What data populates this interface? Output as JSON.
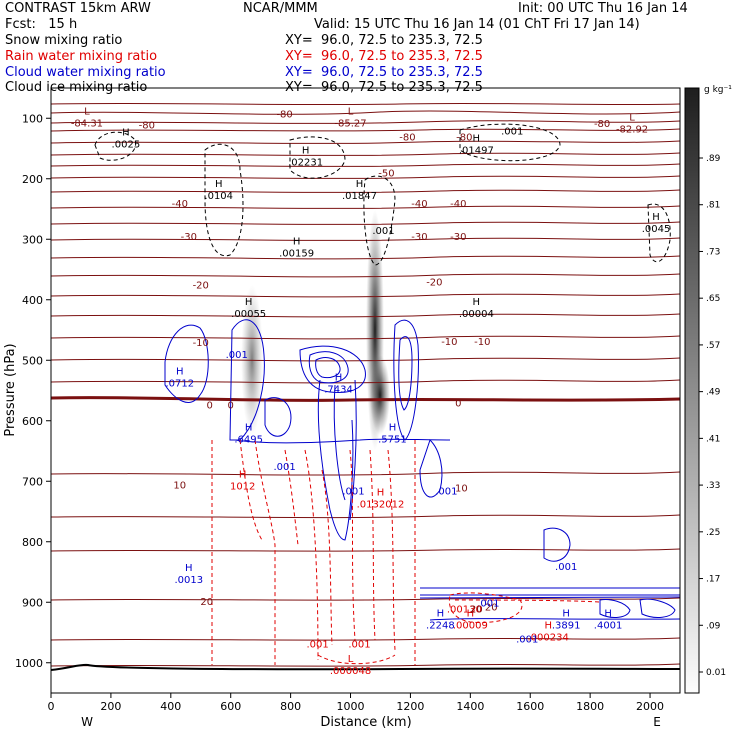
{
  "header": {
    "model": "CONTRAST 15km ARW",
    "org": "NCAR/MMM",
    "init": "Init: 00 UTC Thu 16 Jan 14",
    "fcst": "Fcst:   15 h",
    "valid": "Valid: 15 UTC Thu 16 Jan 14 (01 ChT Fri 17 Jan 14)",
    "fields": [
      {
        "name": "Snow mixing ratio",
        "xy": "XY=  96.0, 72.5 to 235.3, 72.5",
        "color": "#000000"
      },
      {
        "name": "Rain water mixing ratio",
        "xy": "XY=  96.0, 72.5 to 235.3, 72.5",
        "color": "#e00000"
      },
      {
        "name": "Cloud water mixing ratio",
        "xy": "XY=  96.0, 72.5 to 235.3, 72.5",
        "color": "#0000cc"
      },
      {
        "name": "Cloud ice mixing ratio",
        "xy": "XY=  96.0, 72.5 to 235.3, 72.5",
        "color": "#000000"
      }
    ]
  },
  "chart_data": {
    "type": "cross-section",
    "xlabel": "Distance (km)",
    "ylabel": "Pressure (hPa)",
    "xlim": [
      0,
      2100
    ],
    "ylim": [
      1050,
      50
    ],
    "x_ticks": [
      0,
      200,
      400,
      600,
      800,
      1000,
      1200,
      1400,
      1600,
      1800,
      2000
    ],
    "y_ticks": [
      100,
      200,
      300,
      400,
      500,
      600,
      700,
      800,
      900,
      1000
    ],
    "x_end_labels": [
      "W",
      "E"
    ],
    "colorbar": {
      "unit": "g kg⁻¹",
      "ticks": [
        "0.01",
        ".09",
        ".17",
        ".25",
        ".33",
        ".41",
        ".49",
        ".57",
        ".65",
        ".73",
        ".81",
        ".89"
      ],
      "values": [
        0.01,
        0.09,
        0.17,
        0.25,
        0.33,
        0.41,
        0.49,
        0.57,
        0.65,
        0.73,
        0.81,
        0.89
      ]
    },
    "temperature_contours": [
      {
        "label": "-80",
        "x": 320,
        "p": 110
      },
      {
        "label": "-80",
        "x": 780,
        "p": 92
      },
      {
        "label": "-80",
        "x": 1190,
        "p": 130
      },
      {
        "label": "-80",
        "x": 1380,
        "p": 130
      },
      {
        "label": "-80",
        "x": 1840,
        "p": 108
      },
      {
        "label": "-50",
        "x": 1120,
        "p": 190
      },
      {
        "label": "-40",
        "x": 430,
        "p": 240
      },
      {
        "label": "-40",
        "x": 1230,
        "p": 240
      },
      {
        "label": "-40",
        "x": 1360,
        "p": 240
      },
      {
        "label": "-30",
        "x": 460,
        "p": 295
      },
      {
        "label": "-30",
        "x": 1230,
        "p": 295
      },
      {
        "label": "-30",
        "x": 1360,
        "p": 295
      },
      {
        "label": "-20",
        "x": 500,
        "p": 375
      },
      {
        "label": "-20",
        "x": 1280,
        "p": 370
      },
      {
        "label": "-10",
        "x": 500,
        "p": 470
      },
      {
        "label": "-10",
        "x": 1330,
        "p": 468
      },
      {
        "label": "-10",
        "x": 1440,
        "p": 468
      },
      {
        "label": "0",
        "x": 530,
        "p": 573
      },
      {
        "label": "0",
        "x": 600,
        "p": 573
      },
      {
        "label": "0",
        "x": 1360,
        "p": 570
      },
      {
        "label": "10",
        "x": 430,
        "p": 705
      },
      {
        "label": "10",
        "x": 1370,
        "p": 710
      },
      {
        "label": "20",
        "x": 520,
        "p": 898
      },
      {
        "label": "20",
        "x": 1470,
        "p": 907
      }
    ],
    "extrema": [
      {
        "kind": "L",
        "value": "-84.31",
        "x": 120,
        "p": 105,
        "color": "#7b1010"
      },
      {
        "kind": "L",
        "value": "-85.27",
        "x": 1000,
        "p": 105,
        "color": "#7b1010"
      },
      {
        "kind": "L",
        "value": "-82.92",
        "x": 1940,
        "p": 115,
        "color": "#7b1010"
      },
      {
        "kind": "H",
        "value": ".0025",
        "x": 250,
        "p": 140,
        "color": "#000000"
      },
      {
        "kind": "H",
        "value": ".02231",
        "x": 850,
        "p": 170,
        "color": "#000000"
      },
      {
        "kind": "H",
        "value": ".01497",
        "x": 1420,
        "p": 150,
        "color": "#000000"
      },
      {
        "kind": "H",
        "value": ".0104",
        "x": 560,
        "p": 225,
        "color": "#000000"
      },
      {
        "kind": "H",
        "value": ".01847",
        "x": 1030,
        "p": 225,
        "color": "#000000"
      },
      {
        "kind": "H",
        "value": ".0045",
        "x": 2020,
        "p": 280,
        "color": "#000000"
      },
      {
        "kind": "H",
        "value": ".00159",
        "x": 820,
        "p": 320,
        "color": "#000000"
      },
      {
        "kind": "H",
        "value": ".00055",
        "x": 660,
        "p": 420,
        "color": "#000000"
      },
      {
        "kind": "H",
        "value": ".00004",
        "x": 1420,
        "p": 420,
        "color": "#000000"
      },
      {
        "kind": "H",
        "value": ".0712",
        "x": 430,
        "p": 535,
        "color": "#0000cc"
      },
      {
        "kind": "H",
        "value": ".7434",
        "x": 960,
        "p": 545,
        "color": "#0000cc"
      },
      {
        "kind": "H",
        "value": ".6495",
        "x": 660,
        "p": 628,
        "color": "#0000cc"
      },
      {
        "kind": "H",
        "value": ".5751",
        "x": 1140,
        "p": 628,
        "color": "#0000cc"
      },
      {
        "kind": "H",
        "value": ".0013",
        "x": 460,
        "p": 860,
        "color": "#0000cc"
      },
      {
        "kind": "H",
        "value": ".2248",
        "x": 1300,
        "p": 935,
        "color": "#0000cc"
      },
      {
        "kind": "H",
        "value": ".3891",
        "x": 1720,
        "p": 935,
        "color": "#0000cc"
      },
      {
        "kind": "H",
        "value": ".4001",
        "x": 1860,
        "p": 935,
        "color": "#0000cc"
      },
      {
        "kind": "H",
        "value": ".00009",
        "x": 1400,
        "p": 935,
        "color": "#e00000"
      },
      {
        "kind": "H",
        "value": ".000234",
        "x": 1660,
        "p": 955,
        "color": "#e00000"
      },
      {
        "kind": "H",
        "value": "1012",
        "x": 640,
        "p": 705,
        "color": "#e00000"
      },
      {
        "kind": "H",
        "value": ".0132012",
        "x": 1100,
        "p": 735,
        "color": "#e00000"
      },
      {
        "kind": "L",
        "value": ".000048",
        "x": 1000,
        "p": 1010,
        "color": "#e00000"
      }
    ],
    "small_labels": [
      {
        "value": ".001",
        "x": 1540,
        "p": 120,
        "color": "#000000"
      },
      {
        "value": ".001",
        "x": 1110,
        "p": 285,
        "color": "#000000"
      },
      {
        "value": ".001",
        "x": 620,
        "p": 490,
        "color": "#0000cc"
      },
      {
        "value": ".001",
        "x": 780,
        "p": 675,
        "color": "#0000cc"
      },
      {
        "value": ".001",
        "x": 1010,
        "p": 715,
        "color": "#0000cc"
      },
      {
        "value": ".001",
        "x": 1320,
        "p": 715,
        "color": "#0000cc"
      },
      {
        "value": ".001",
        "x": 1720,
        "p": 840,
        "color": "#0000cc"
      },
      {
        "value": ".001",
        "x": 1460,
        "p": 900,
        "color": "#0000cc"
      },
      {
        "value": ".001",
        "x": 1590,
        "p": 960,
        "color": "#0000cc"
      },
      {
        "value": ".001",
        "x": 890,
        "p": 968,
        "color": "#e00000"
      },
      {
        "value": ".001",
        "x": 1030,
        "p": 968,
        "color": "#e00000"
      },
      {
        "value": ".00130",
        "x": 1380,
        "p": 910,
        "color": "#e00000"
      },
      {
        "value": "20",
        "x": 1420,
        "p": 910,
        "color": "#7b1010"
      }
    ],
    "colors": {
      "temperature": "#7b1010",
      "freezing_line": "#7b1010",
      "rain": "#e00000",
      "cloud_water": "#0000cc",
      "snow": "#000000",
      "cloud_ice": "#000000"
    }
  }
}
